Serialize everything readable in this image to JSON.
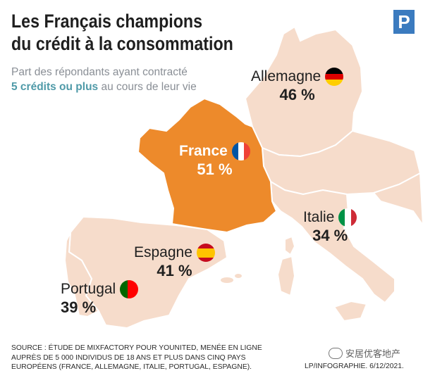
{
  "title": {
    "line1": "Les Français champions",
    "line2": "du crédit à la consommation"
  },
  "subtitle": {
    "line1": "Part des répondants ayant contracté",
    "highlight": "5 crédits ou plus",
    "line2_rest": " au cours de leur vie"
  },
  "logo": {
    "letter": "P"
  },
  "countries": {
    "allemagne": {
      "name": "Allemagne",
      "value": "46 %",
      "flag_colors": [
        "#000000",
        "#dd0000",
        "#ffce00"
      ]
    },
    "france": {
      "name": "France",
      "value": "51 %",
      "flag_colors": [
        "#0055a4",
        "#ffffff",
        "#ef4135"
      ]
    },
    "italie": {
      "name": "Italie",
      "value": "34 %",
      "flag_colors": [
        "#009246",
        "#ffffff",
        "#ce2b37"
      ]
    },
    "espagne": {
      "name": "Espagne",
      "value": "41 %",
      "flag_colors": [
        "#c60b1e",
        "#ffc400",
        "#c60b1e"
      ]
    },
    "portugal": {
      "name": "Portugal",
      "value": "39 %",
      "flag_colors": [
        "#006600",
        "#ff0000"
      ]
    }
  },
  "colors": {
    "france_fill": "#ed8a2b",
    "land_fill": "#f6dccb",
    "border": "#ffffff",
    "highlight_text": "#4f9aa8",
    "logo_bg": "#3b7bbf"
  },
  "source": {
    "line1": "SOURCE : ÉTUDE DE MIXFACTORY POUR YOUNITED, MENÉE EN LIGNE",
    "line2": "AUPRÈS DE 5 000 INDIVIDUS DE 18 ANS ET PLUS DANS CINQ PAYS",
    "line3": "EUROPÉENS (FRANCE, ALLEMAGNE, ITALIE, PORTUGAL, ESPAGNE)."
  },
  "credit": "LP/INFOGRAPHIE.  6/12/2021.",
  "watermark": "安居优客地产"
}
